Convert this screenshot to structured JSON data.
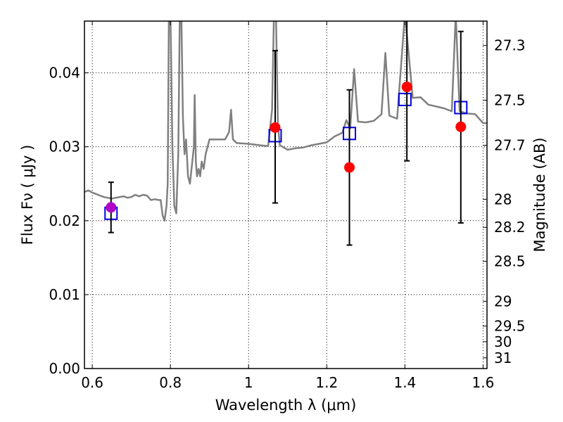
{
  "chart_data": {
    "type": "scatter",
    "xlabel": "Wavelength  λ (μm)",
    "ylabel": "Flux  Fν ( μJy )",
    "ylabel_right": "Magnitude (AB)",
    "xlim": [
      0.58,
      1.61
    ],
    "ylim": [
      0.0,
      0.047
    ],
    "grid": true,
    "x_ticks": [
      0.6,
      0.8,
      1.0,
      1.2,
      1.4,
      1.6
    ],
    "x_tick_labels": [
      "0.6",
      "0.8",
      "1",
      "1.2",
      "1.4",
      "1.6"
    ],
    "y_ticks": [
      0.0,
      0.01,
      0.02,
      0.03,
      0.04
    ],
    "y_tick_labels": [
      "0.00",
      "0.01",
      "0.02",
      "0.03",
      "0.04"
    ],
    "right_ticks": [
      {
        "label": "27.3",
        "flux": 0.0437
      },
      {
        "label": "27.5",
        "flux": 0.0363
      },
      {
        "label": "27.7",
        "flux": 0.0302
      },
      {
        "label": "28",
        "flux": 0.0229
      },
      {
        "label": "28.2",
        "flux": 0.0191
      },
      {
        "label": "28.5",
        "flux": 0.0145
      },
      {
        "label": "29",
        "flux": 0.0091
      },
      {
        "label": "29.5",
        "flux": 0.00575
      },
      {
        "label": "30",
        "flux": 0.00363
      },
      {
        "label": "31",
        "flux": 0.00145
      }
    ],
    "colors": {
      "model": "#808080",
      "observed": "#ff0000",
      "observed_blended": "#b000c8",
      "model_photometry": "#0000dd",
      "errorbar": "#000000"
    },
    "series": [
      {
        "kind": "line",
        "x": [
          0.58,
          0.59,
          0.6,
          0.61,
          0.62,
          0.63,
          0.64,
          0.65,
          0.66,
          0.67,
          0.68,
          0.69,
          0.7,
          0.71,
          0.72,
          0.73,
          0.74,
          0.75,
          0.76,
          0.77,
          0.775,
          0.78,
          0.785,
          0.79,
          0.793,
          0.796,
          0.8,
          0.805,
          0.81,
          0.815,
          0.82,
          0.824,
          0.828,
          0.832,
          0.836,
          0.84,
          0.845,
          0.85,
          0.86,
          0.862,
          0.865,
          0.868,
          0.872,
          0.876,
          0.88,
          0.885,
          0.89,
          0.9,
          0.92,
          0.94,
          0.95,
          0.955,
          0.96,
          0.97,
          1.0,
          1.03,
          1.05,
          1.06,
          1.065,
          1.07,
          1.075,
          1.08,
          1.1,
          1.12,
          1.14,
          1.16,
          1.18,
          1.2,
          1.22,
          1.24,
          1.25,
          1.26,
          1.27,
          1.28,
          1.3,
          1.32,
          1.34,
          1.35,
          1.36,
          1.38,
          1.4,
          1.42,
          1.44,
          1.46,
          1.5,
          1.52,
          1.53,
          1.54,
          1.56,
          1.58,
          1.6,
          1.61
        ],
        "y": [
          0.0239,
          0.0241,
          0.0238,
          0.0236,
          0.0234,
          0.0232,
          0.0231,
          0.023,
          0.0231,
          0.0232,
          0.0233,
          0.0231,
          0.0232,
          0.0235,
          0.0233,
          0.0235,
          0.0234,
          0.0228,
          0.0229,
          0.0228,
          0.0228,
          0.0207,
          0.02,
          0.022,
          0.025,
          0.048,
          0.048,
          0.03,
          0.022,
          0.021,
          0.029,
          0.048,
          0.048,
          0.034,
          0.029,
          0.031,
          0.026,
          0.025,
          0.03,
          0.037,
          0.028,
          0.026,
          0.027,
          0.026,
          0.028,
          0.027,
          0.029,
          0.031,
          0.031,
          0.031,
          0.032,
          0.035,
          0.031,
          0.0305,
          0.0304,
          0.0302,
          0.0301,
          0.035,
          0.048,
          0.048,
          0.033,
          0.0302,
          0.0296,
          0.0298,
          0.0299,
          0.0302,
          0.0304,
          0.0306,
          0.0314,
          0.0319,
          0.0336,
          0.0325,
          0.0405,
          0.0334,
          0.0333,
          0.0335,
          0.0344,
          0.0427,
          0.0342,
          0.0338,
          0.048,
          0.0366,
          0.0367,
          0.0357,
          0.0352,
          0.0348,
          0.048,
          0.0348,
          0.0345,
          0.0344,
          0.0332,
          0.0332
        ]
      },
      {
        "kind": "observed",
        "x": [
          0.648,
          1.068,
          1.258,
          1.405,
          1.543
        ],
        "y": [
          0.0218,
          0.0326,
          0.0272,
          0.0381,
          0.0327
        ],
        "yerr_low": [
          0.0184,
          0.0224,
          0.0167,
          0.0281,
          0.0197
        ],
        "yerr_high": [
          0.0252,
          0.043,
          0.0377,
          0.0481,
          0.0456
        ]
      },
      {
        "kind": "model_photometry",
        "x": [
          0.648,
          1.068,
          1.258,
          1.4,
          1.543
        ],
        "y": [
          0.021,
          0.0315,
          0.0318,
          0.0364,
          0.0353
        ]
      }
    ]
  }
}
